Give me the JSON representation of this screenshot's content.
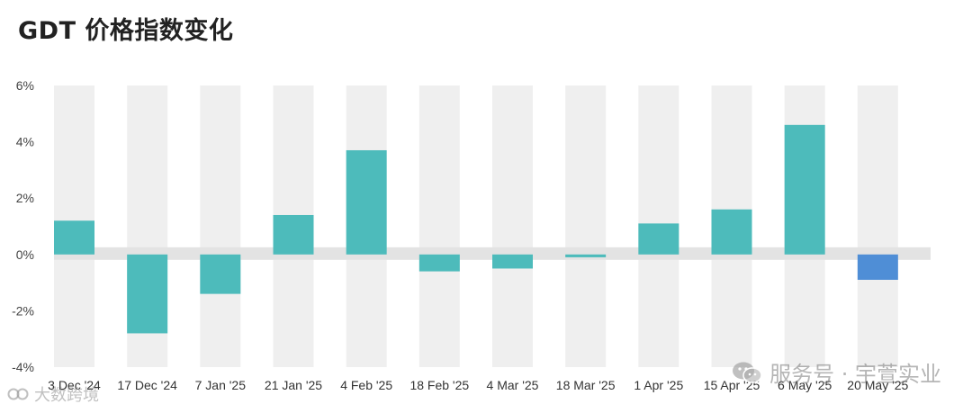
{
  "title": "GDT 价格指数变化",
  "watermark_right": "服务号 · 宇萱实业",
  "watermark_left": "大数跨境",
  "icons": {
    "watermark_right_icon": "wechat-icon",
    "watermark_left_icon": "brand-logo-icon"
  },
  "chart_data": {
    "type": "bar",
    "title": "GDT 价格指数变化",
    "xlabel": "",
    "ylabel": "",
    "ylim": [
      -4,
      6
    ],
    "yticks": [
      6,
      4,
      2,
      0,
      -2,
      -4
    ],
    "ytick_labels": [
      "6%",
      "4%",
      "2%",
      "0%",
      "-2%",
      "-4%"
    ],
    "grid": false,
    "categories": [
      "3 Dec '24",
      "17 Dec '24",
      "7 Jan '25",
      "21 Jan '25",
      "4 Feb '25",
      "18 Feb '25",
      "4 Mar '25",
      "18 Mar '25",
      "1 Apr '25",
      "15 Apr '25",
      "6 May '25",
      "20 May '25"
    ],
    "values": [
      1.2,
      -2.8,
      -1.4,
      1.4,
      3.7,
      -0.6,
      -0.5,
      -0.1,
      1.1,
      1.6,
      4.6,
      -0.9
    ],
    "colors": {
      "positive": "#4dbbbb",
      "negative": "#4dbbbb",
      "latest": "#4f8ed6",
      "column_band": "#efefef",
      "zero_band": "#e3e3e3"
    }
  }
}
